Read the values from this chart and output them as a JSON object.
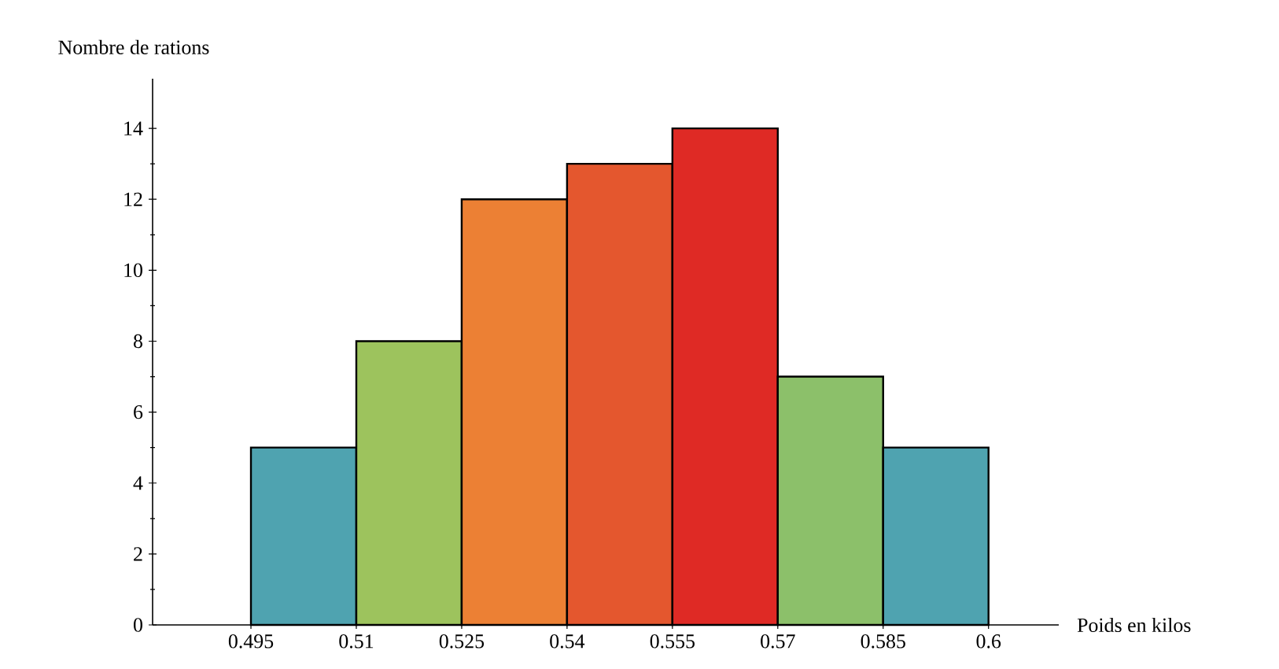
{
  "chart_data": {
    "type": "histogram",
    "xlabel": "Poids en kilos",
    "ylabel": "Nombre de rations",
    "bins": [
      0.495,
      0.51,
      0.525,
      0.54,
      0.555,
      0.57,
      0.585,
      0.6
    ],
    "values": [
      5,
      8,
      12,
      13,
      14,
      7,
      5
    ],
    "colors": [
      "#4fa3b0",
      "#9dc35d",
      "#ec8034",
      "#e4572e",
      "#df2a25",
      "#8cc06a",
      "#4fa3b0"
    ],
    "xlim": [
      0.481,
      0.61
    ],
    "ylim": [
      0,
      15.4
    ],
    "xticks": [
      0.495,
      0.51,
      0.525,
      0.54,
      0.555,
      0.57,
      0.585,
      0.6
    ],
    "yticks": [
      0,
      2,
      4,
      6,
      8,
      10,
      12,
      14
    ]
  }
}
